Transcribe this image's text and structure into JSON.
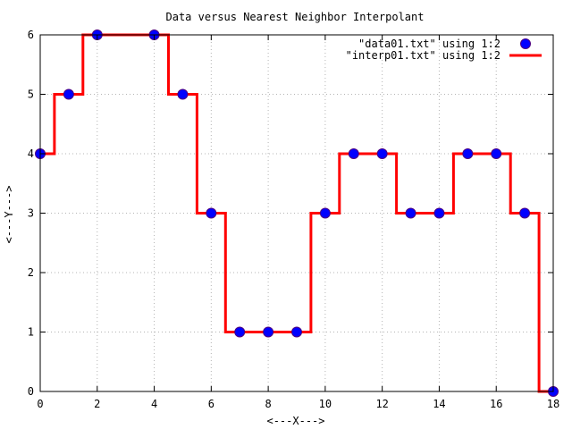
{
  "chart_data": {
    "type": "line",
    "title": "Data versus Nearest Neighbor Interpolant",
    "xlabel": "<---X--->",
    "ylabel": "<---Y--->",
    "xlim": [
      0,
      18
    ],
    "ylim": [
      0,
      6
    ],
    "x_ticks": [
      0,
      2,
      4,
      6,
      8,
      10,
      12,
      14,
      16,
      18
    ],
    "y_ticks": [
      0,
      1,
      2,
      3,
      4,
      5,
      6
    ],
    "grid": true,
    "legend_position": "top-right",
    "series": [
      {
        "name": "\"data01.txt\" using 1:2",
        "style": "points",
        "color": "#0000ff",
        "outline_color": "#4b0082",
        "x": [
          0,
          1,
          2,
          4,
          5,
          6,
          7,
          8,
          9,
          10,
          11,
          12,
          13,
          14,
          15,
          16,
          17,
          18
        ],
        "y": [
          4,
          5,
          6,
          6,
          5,
          3,
          1,
          1,
          1,
          3,
          4,
          4,
          3,
          3,
          4,
          4,
          3,
          0
        ]
      },
      {
        "name": "\"interp01.txt\" using 1:2",
        "style": "step-line",
        "color": "#ff0000",
        "x": [
          0,
          0.5,
          0.5,
          1.5,
          1.5,
          4.5,
          4.5,
          5.5,
          5.5,
          6.5,
          6.5,
          9.5,
          9.5,
          10.5,
          10.5,
          12.5,
          12.5,
          14.5,
          14.5,
          16.5,
          16.5,
          17.5,
          17.5,
          18
        ],
        "y": [
          4,
          4,
          5,
          5,
          6,
          6,
          5,
          5,
          3,
          3,
          1,
          1,
          3,
          3,
          4,
          4,
          3,
          3,
          4,
          4,
          3,
          3,
          0,
          0
        ]
      }
    ]
  }
}
